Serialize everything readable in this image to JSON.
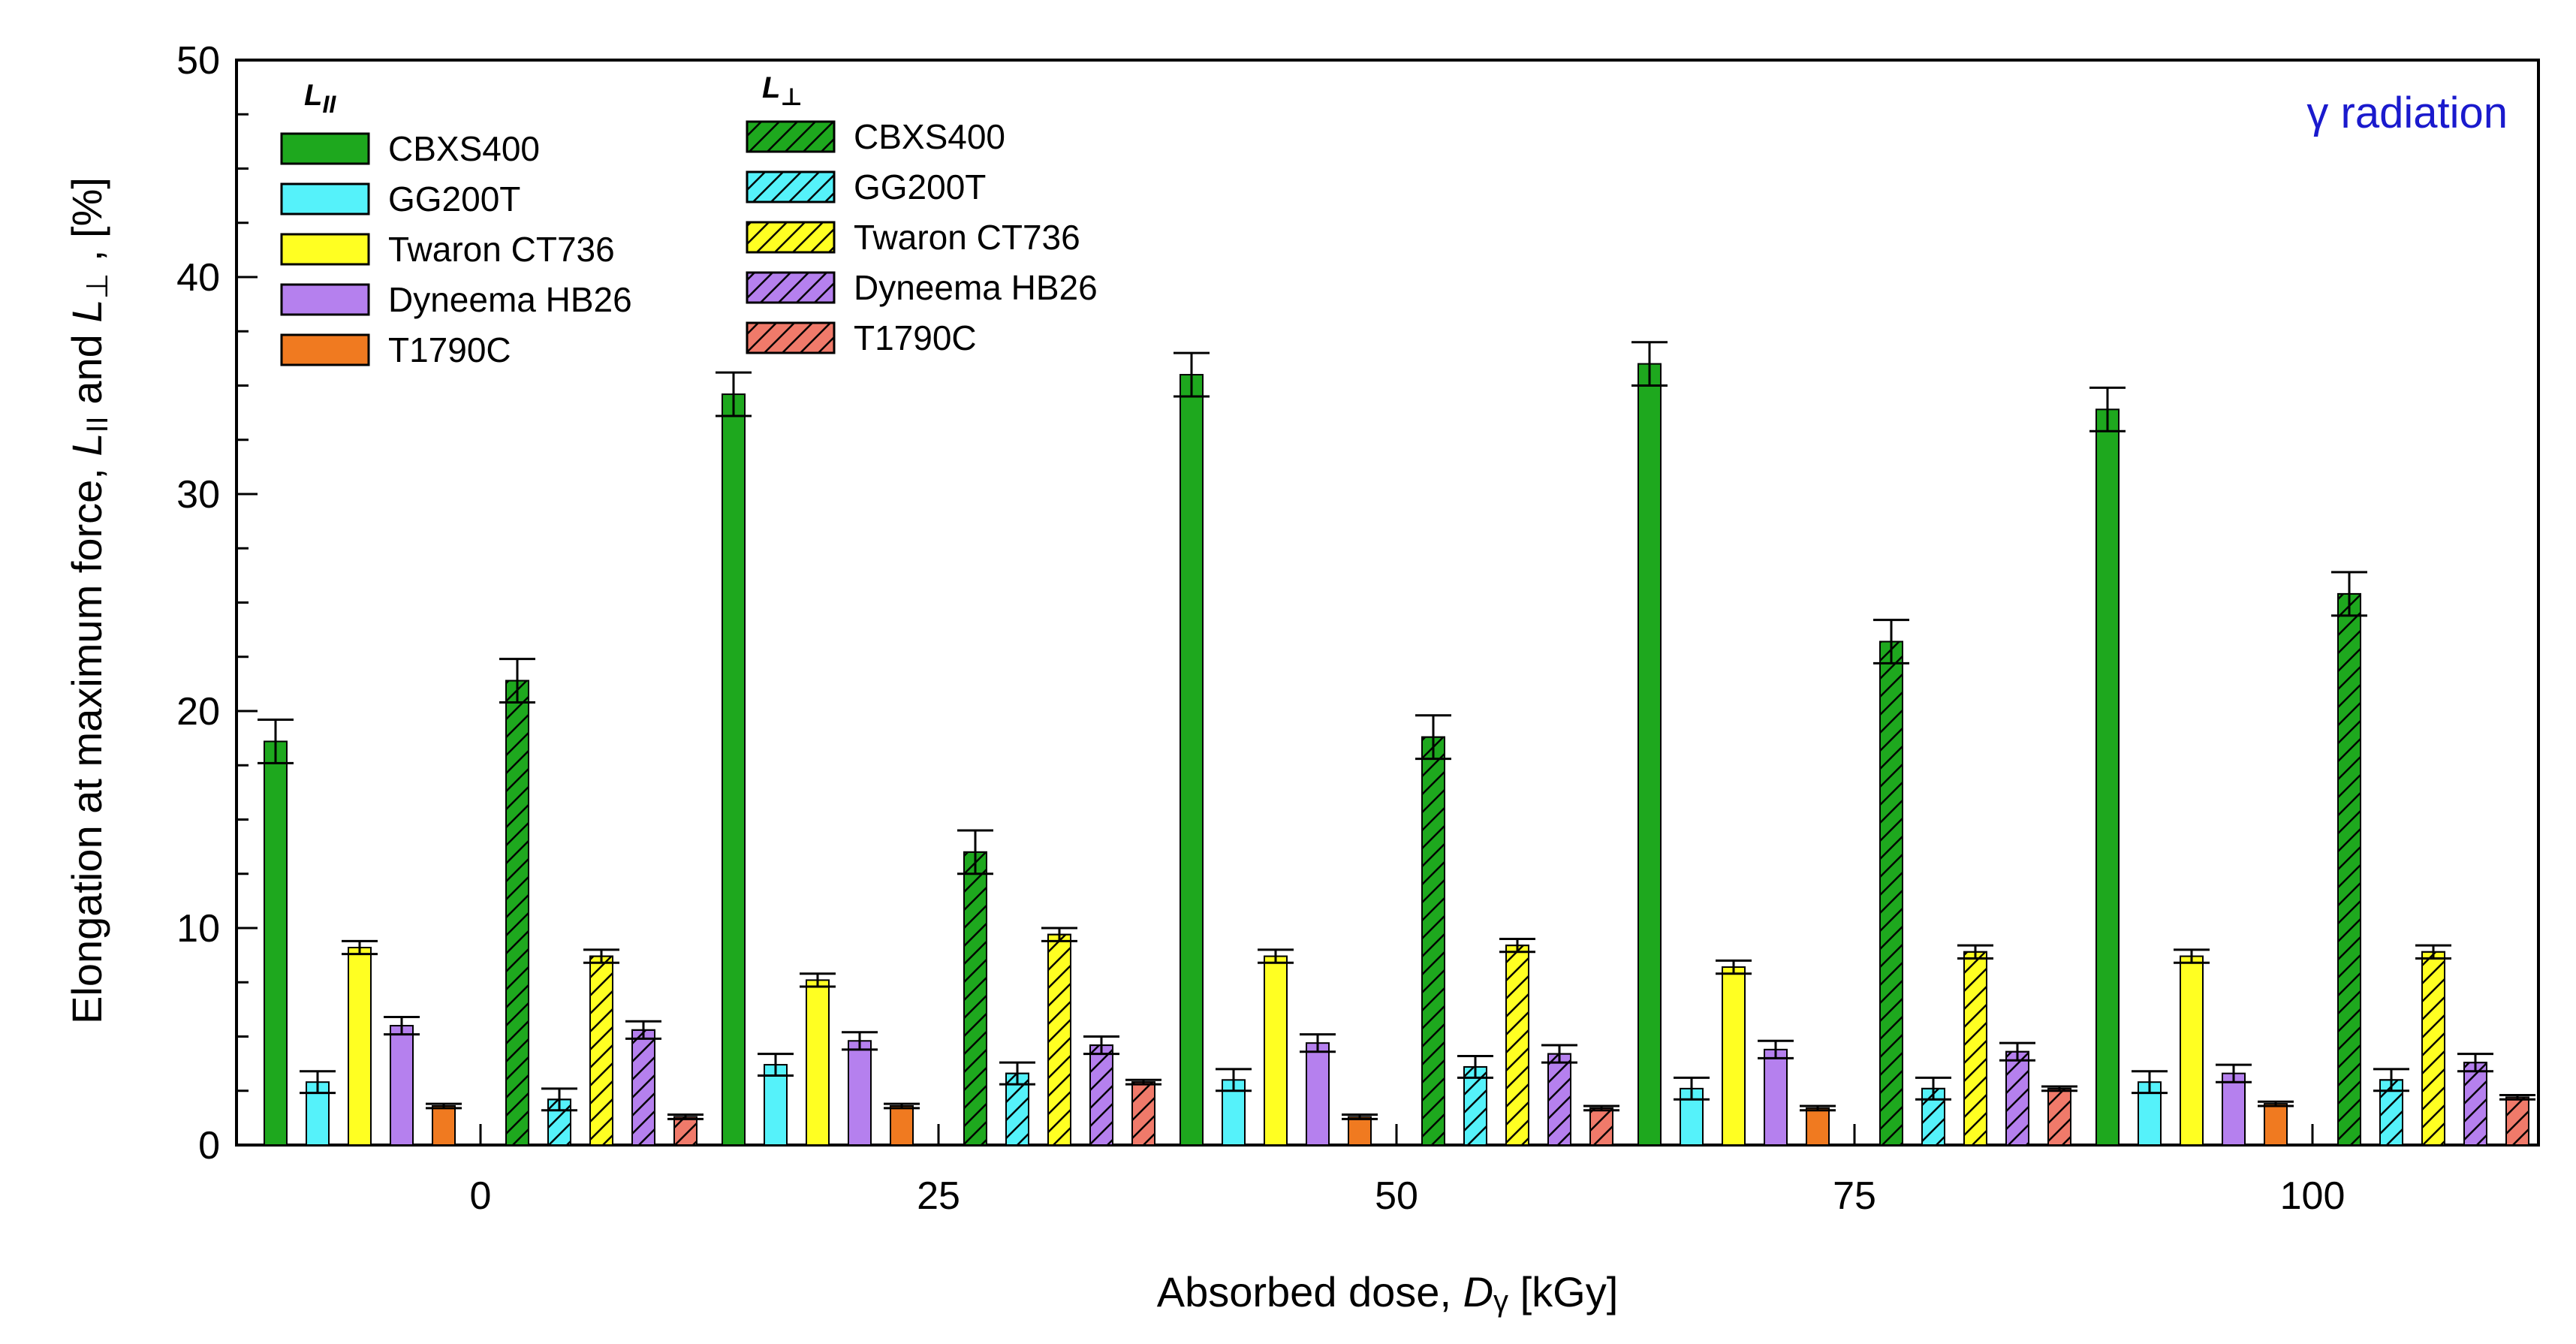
{
  "chart_data": {
    "type": "bar",
    "title": "",
    "annotation": "γ radiation",
    "xlabel": "Absorbed dose, Dγ [kGy]",
    "xlabel_parts": {
      "prefix": "Absorbed dose, ",
      "symbol": "D",
      "subscript": "γ",
      "suffix": " [kGy]"
    },
    "ylabel": "Elongation at maximum force, L∥ and L⊥ , [%]",
    "ylabel_parts": {
      "prefix": "Elongation at maximum force, ",
      "sym1": "L",
      "sub1": "II",
      "mid": " and ",
      "sym2": "L",
      "sub2": "⊥",
      "suffix": " , [%]"
    },
    "ylim": [
      0,
      50
    ],
    "yticks": [
      0,
      10,
      20,
      30,
      40,
      50
    ],
    "categories": [
      "0",
      "25",
      "50",
      "75",
      "100"
    ],
    "legend": {
      "group_parallel": {
        "symbol": "L",
        "subscript": "II"
      },
      "group_perpendicular": {
        "symbol": "L",
        "subscript": "⊥"
      },
      "placement": "top-left"
    },
    "series": [
      {
        "name": "CBXS400",
        "orientation": "parallel",
        "color": "#1ea81e",
        "hatch": false,
        "values": [
          18.6,
          34.6,
          35.5,
          36.0,
          33.9
        ],
        "errors": [
          1.0,
          1.0,
          1.0,
          1.0,
          1.0
        ]
      },
      {
        "name": "GG200T",
        "orientation": "parallel",
        "color": "#55f2fa",
        "hatch": false,
        "values": [
          2.9,
          3.7,
          3.0,
          2.6,
          2.9
        ],
        "errors": [
          0.5,
          0.5,
          0.5,
          0.5,
          0.5
        ]
      },
      {
        "name": "Twaron CT736",
        "orientation": "parallel",
        "color": "#ffff22",
        "hatch": false,
        "values": [
          9.1,
          7.6,
          8.7,
          8.2,
          8.7
        ],
        "errors": [
          0.3,
          0.3,
          0.3,
          0.3,
          0.3
        ]
      },
      {
        "name": "Dyneema HB26",
        "orientation": "parallel",
        "color": "#b580ee",
        "hatch": false,
        "values": [
          5.5,
          4.8,
          4.7,
          4.4,
          3.3
        ],
        "errors": [
          0.4,
          0.4,
          0.4,
          0.4,
          0.4
        ]
      },
      {
        "name": "T1790C",
        "orientation": "parallel",
        "color": "#f07a20",
        "hatch": false,
        "values": [
          1.8,
          1.8,
          1.3,
          1.7,
          1.9
        ],
        "errors": [
          0.1,
          0.1,
          0.1,
          0.1,
          0.1
        ]
      },
      {
        "name": "CBXS400",
        "orientation": "perpendicular",
        "color": "#1ea81e",
        "hatch": true,
        "values": [
          21.4,
          13.5,
          18.8,
          23.2,
          25.4
        ],
        "errors": [
          1.0,
          1.0,
          1.0,
          1.0,
          1.0
        ]
      },
      {
        "name": "GG200T",
        "orientation": "perpendicular",
        "color": "#55f2fa",
        "hatch": true,
        "values": [
          2.1,
          3.3,
          3.6,
          2.6,
          3.0
        ],
        "errors": [
          0.5,
          0.5,
          0.5,
          0.5,
          0.5
        ]
      },
      {
        "name": "Twaron CT736",
        "orientation": "perpendicular",
        "color": "#ffff22",
        "hatch": true,
        "values": [
          8.7,
          9.7,
          9.2,
          8.9,
          8.9
        ],
        "errors": [
          0.3,
          0.3,
          0.3,
          0.3,
          0.3
        ]
      },
      {
        "name": "Dyneema HB26",
        "orientation": "perpendicular",
        "color": "#b580ee",
        "hatch": true,
        "values": [
          5.3,
          4.6,
          4.2,
          4.3,
          3.8
        ],
        "errors": [
          0.4,
          0.4,
          0.4,
          0.4,
          0.4
        ]
      },
      {
        "name": "T1790C",
        "orientation": "perpendicular",
        "color": "#f07a6a",
        "hatch": true,
        "values": [
          1.3,
          2.9,
          1.7,
          2.6,
          2.2
        ],
        "errors": [
          0.1,
          0.1,
          0.1,
          0.1,
          0.1
        ]
      }
    ]
  }
}
